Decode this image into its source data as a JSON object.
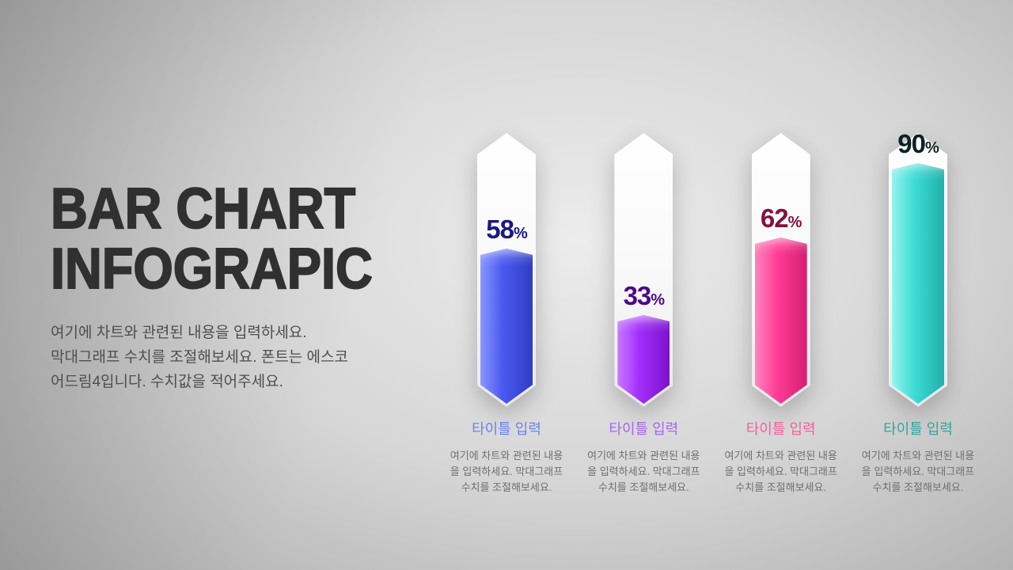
{
  "slide": {
    "title_line1": "BAR CHART",
    "title_line2": "INFOGRAPIC",
    "description": "여기에 차트와 관련된 내용을 입력하세요.\n막대그래프 수치를 조절해보세요. 폰트는 에스코\n어드림4입니다. 수치값을 적어주세요."
  },
  "chart_data": {
    "type": "bar",
    "title": "BAR CHART INFOGRAPIC",
    "unit": "%",
    "ylim": [
      0,
      100
    ],
    "categories": [
      "타이틀 입력",
      "타이틀 입력",
      "타이틀 입력",
      "타이틀 입력"
    ],
    "values": [
      58,
      33,
      62,
      90
    ],
    "bars": [
      {
        "value": 58,
        "label": "타이틀 입력",
        "description": "여기에 차트와 관련된 내용을 입력하세요. 막대그래프 수치를 조절해보세요.",
        "colors": {
          "front": "#4a5af0",
          "light": "#8a96ff",
          "dark": "#2f3cc4",
          "value_text": "#1a1a7e",
          "label_text": "#6b83f5"
        }
      },
      {
        "value": 33,
        "label": "타이틀 입력",
        "description": "여기에 차트와 관련된 내용을 입력하세요. 막대그래프 수치를 조절해보세요.",
        "colors": {
          "front": "#a22ffa",
          "light": "#c979ff",
          "dark": "#7c12cc",
          "value_text": "#4c0a85",
          "label_text": "#a566f2"
        }
      },
      {
        "value": 62,
        "label": "타이틀 입력",
        "description": "여기에 차트와 관련된 내용을 입력하세요. 막대그래프 수치를 조절해보세요.",
        "colors": {
          "front": "#ff3c96",
          "light": "#ff85bd",
          "dark": "#d61d74",
          "value_text": "#861040",
          "label_text": "#f55f9e"
        }
      },
      {
        "value": 90,
        "label": "타이틀 입력",
        "description": "여기에 차트와 관련된 내용을 입력하세요. 막대그래프 수치를 조절해보세요.",
        "colors": {
          "front": "#3fdcd6",
          "light": "#96f4ef",
          "dark": "#1fb0aa",
          "value_text": "#0c2221",
          "label_text": "#30a79f"
        }
      }
    ]
  }
}
